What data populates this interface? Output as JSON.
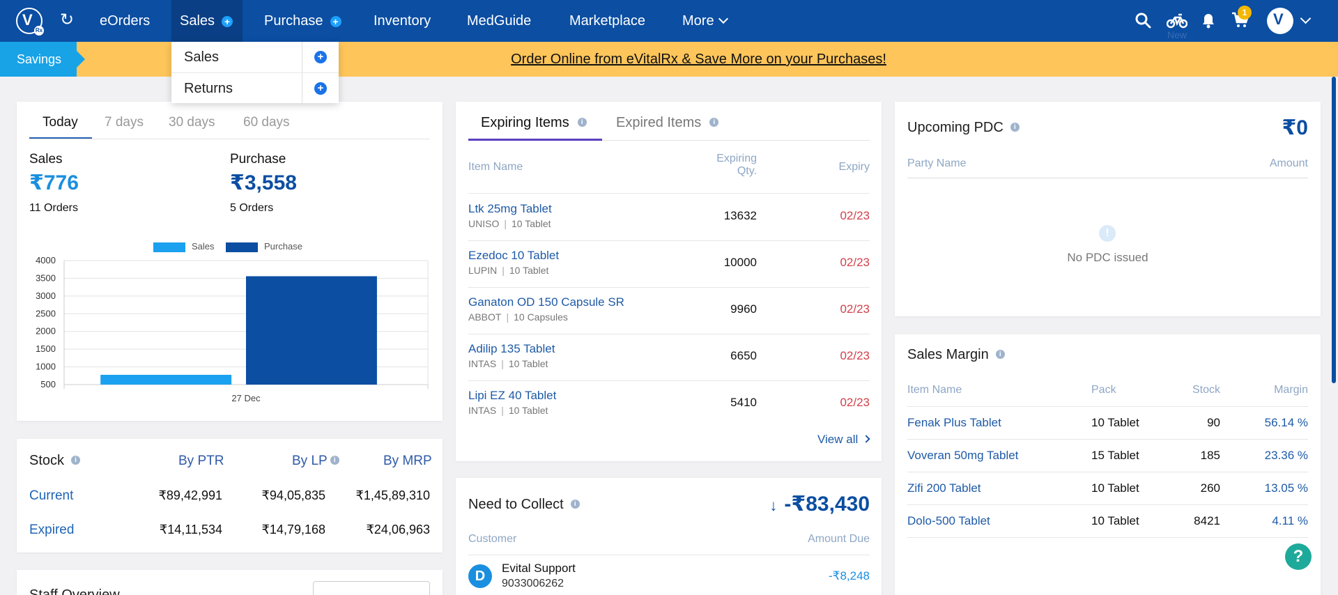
{
  "nav": {
    "items": [
      {
        "label": "eOrders"
      },
      {
        "label": "Sales"
      },
      {
        "label": "Purchase"
      },
      {
        "label": "Inventory"
      },
      {
        "label": "MedGuide"
      },
      {
        "label": "Marketplace"
      },
      {
        "label": "More"
      }
    ],
    "plus_glyph": "+",
    "cart_count": "1",
    "new_label": "New"
  },
  "banner": {
    "tag": "Savings",
    "link": "Order Online from eVitalRx & Save More on your Purchases!"
  },
  "sales_dropdown": {
    "items": [
      {
        "label": "Sales"
      },
      {
        "label": "Returns"
      }
    ]
  },
  "summary": {
    "tabs": [
      "Today",
      "7 days",
      "30 days",
      "60 days"
    ],
    "selected_tab": "Today",
    "sales": {
      "label": "Sales",
      "amount": "₹776",
      "orders": "11 Orders"
    },
    "purchase": {
      "label": "Purchase",
      "amount": "₹3,558",
      "orders": "5 Orders"
    }
  },
  "chart_data": {
    "type": "bar",
    "categories": [
      "27 Dec"
    ],
    "series": [
      {
        "name": "Sales",
        "values": [
          776
        ],
        "color": "#1ba1ef"
      },
      {
        "name": "Purchase",
        "values": [
          3558
        ],
        "color": "#0b4ea2"
      }
    ],
    "yticks": [
      "4000",
      "3500",
      "3000",
      "2500",
      "2000",
      "1500",
      "1000",
      "500"
    ],
    "ylim": [
      500,
      4000
    ],
    "legend": "top",
    "grid": true
  },
  "stock": {
    "title": "Stock",
    "headers": [
      "By PTR",
      "By LP",
      "By MRP"
    ],
    "rows": [
      {
        "label": "Current",
        "values": [
          "₹89,42,991",
          "₹94,05,835",
          "₹1,45,89,310"
        ]
      },
      {
        "label": "Expired",
        "values": [
          "₹14,11,534",
          "₹14,79,168",
          "₹24,06,963"
        ]
      }
    ]
  },
  "staff": {
    "title": "Staff Overview"
  },
  "expiring": {
    "tabs": [
      "Expiring Items",
      "Expired Items"
    ],
    "headers": {
      "name": "Item Name",
      "qty_1": "Expiring",
      "qty_2": "Qty.",
      "expiry": "Expiry"
    },
    "items": [
      {
        "name": "Ltk 25mg Tablet",
        "company": "UNISO",
        "pack": "10 Tablet",
        "qty": "13632",
        "expiry": "02/23"
      },
      {
        "name": "Ezedoc 10 Tablet",
        "company": "LUPIN",
        "pack": "10 Tablet",
        "qty": "10000",
        "expiry": "02/23"
      },
      {
        "name": "Ganaton OD 150 Capsule SR",
        "company": "ABBOT",
        "pack": "10 Capsules",
        "qty": "9960",
        "expiry": "02/23"
      },
      {
        "name": "Adilip 135 Tablet",
        "company": "INTAS",
        "pack": "10 Tablet",
        "qty": "6650",
        "expiry": "02/23"
      },
      {
        "name": "Lipi EZ 40 Tablet",
        "company": "INTAS",
        "pack": "10 Tablet",
        "qty": "5410",
        "expiry": "02/23"
      }
    ],
    "sep": "|",
    "view_all": "View all"
  },
  "collect": {
    "title": "Need to Collect",
    "amount": "-₹83,430",
    "headers": {
      "customer": "Customer",
      "amount": "Amount Due"
    },
    "rows": [
      {
        "initial": "D",
        "name": "Evital Support",
        "phone": "9033006262",
        "due": "-₹8,248"
      }
    ]
  },
  "pdc": {
    "title": "Upcoming PDC",
    "amount": "₹0",
    "headers": {
      "party": "Party Name",
      "amount": "Amount"
    },
    "empty": "No PDC issued"
  },
  "margin": {
    "title": "Sales Margin",
    "headers": {
      "name": "Item Name",
      "pack": "Pack",
      "stock": "Stock",
      "margin": "Margin"
    },
    "rows": [
      {
        "name": "Fenak Plus Tablet",
        "pack": "10 Tablet",
        "stock": "90",
        "margin": "56.14 %"
      },
      {
        "name": "Voveran 50mg Tablet",
        "pack": "15 Tablet",
        "stock": "185",
        "margin": "23.36 %"
      },
      {
        "name": "Zifi 200 Tablet",
        "pack": "10 Tablet",
        "stock": "260",
        "margin": "13.05 %"
      },
      {
        "name": "Dolo-500 Tablet",
        "pack": "10 Tablet",
        "stock": "8421",
        "margin": "4.11 %"
      }
    ]
  },
  "help": "?"
}
